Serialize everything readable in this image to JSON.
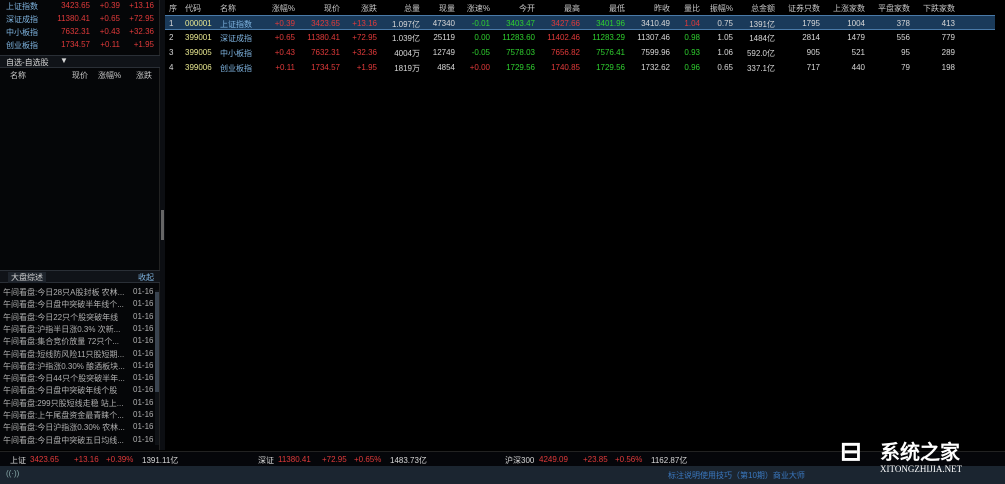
{
  "left": {
    "indices": [
      {
        "name": "上证指数",
        "price": "3423.65",
        "pct": "+0.39",
        "chg": "+13.16"
      },
      {
        "name": "深证成指",
        "price": "11380.41",
        "pct": "+0.65",
        "chg": "+72.95"
      },
      {
        "name": "中小板指",
        "price": "7632.31",
        "pct": "+0.43",
        "chg": "+32.36"
      },
      {
        "name": "创业板指",
        "price": "1734.57",
        "pct": "+0.11",
        "chg": "+1.95"
      }
    ],
    "watchlist": {
      "title": "自选-自选股",
      "headers": [
        "名称",
        "现价",
        "涨幅%",
        "涨跌"
      ]
    },
    "news": {
      "title": "大盘综述",
      "collapse": "收起",
      "items": [
        {
          "t": "午间看盘:今日28只A股封板 农林...",
          "d": "01-16"
        },
        {
          "t": "午间看盘:今日盘中突破半年线个...",
          "d": "01-16"
        },
        {
          "t": "午间看盘:今日22只个股突破年线",
          "d": "01-16"
        },
        {
          "t": "午间看盘:沪指半日涨0.3% 次新...",
          "d": "01-16"
        },
        {
          "t": "午间看盘:集合竞价放量 72只个...",
          "d": "01-16"
        },
        {
          "t": "午间看盘:短线防风险11只股短期...",
          "d": "01-16"
        },
        {
          "t": "午间看盘:沪指涨0.30% 酿酒板块...",
          "d": "01-16"
        },
        {
          "t": "午间看盘:今日44只个股突破半年...",
          "d": "01-16"
        },
        {
          "t": "午间看盘:今日盘中突破年线个股",
          "d": "01-16"
        },
        {
          "t": "午间看盘:299只股短线走稳 站上...",
          "d": "01-16"
        },
        {
          "t": "午间看盘:上午尾盘资金最青睐个...",
          "d": "01-16"
        },
        {
          "t": "午间看盘:今日沪指涨0.30% 农林...",
          "d": "01-16"
        },
        {
          "t": "午间看盘:今日盘中突破五日均线...",
          "d": "01-16"
        }
      ]
    }
  },
  "table": {
    "headers": [
      "序",
      "代码",
      "名称",
      "涨幅%",
      "现价",
      "涨跌",
      "总量",
      "现量",
      "涨速%",
      "今开",
      "最高",
      "最低",
      "昨收",
      "量比",
      "振幅%",
      "总金额",
      "证券只数",
      "上涨家数",
      "平盘家数",
      "下跌家数"
    ],
    "rows": [
      [
        "1",
        "000001",
        "上证指数",
        "+0.39",
        "3423.65",
        "+13.16",
        "1.097亿",
        "47340",
        "-0.01",
        "3403.47",
        "3427.66",
        "3401.96",
        "3410.49",
        "1.04",
        "0.75",
        "1391亿",
        "1795",
        "1004",
        "378",
        "413"
      ],
      [
        "2",
        "399001",
        "深证成指",
        "+0.65",
        "11380.41",
        "+72.95",
        "1.039亿",
        "25119",
        "0.00",
        "11283.60",
        "11402.46",
        "11283.29",
        "11307.46",
        "0.98",
        "1.05",
        "1484亿",
        "2814",
        "1479",
        "556",
        "779"
      ],
      [
        "3",
        "399005",
        "中小板指",
        "+0.43",
        "7632.31",
        "+32.36",
        "4004万",
        "12749",
        "-0.05",
        "7578.03",
        "7656.82",
        "7576.41",
        "7599.96",
        "0.93",
        "1.06",
        "592.0亿",
        "905",
        "521",
        "95",
        "289"
      ],
      [
        "4",
        "399006",
        "创业板指",
        "+0.11",
        "1734.57",
        "+1.95",
        "1819万",
        "4854",
        "+0.00",
        "1729.56",
        "1740.85",
        "1729.56",
        "1732.62",
        "0.96",
        "0.65",
        "337.1亿",
        "717",
        "440",
        "79",
        "198"
      ]
    ],
    "colors": [
      [
        "wht",
        "yel",
        "blue",
        "red",
        "red",
        "red",
        "wht",
        "wht",
        "green",
        "green",
        "red",
        "green",
        "wht",
        "red",
        "wht",
        "wht",
        "wht",
        "wht",
        "wht",
        "wht"
      ],
      [
        "wht",
        "yel",
        "blue",
        "red",
        "red",
        "red",
        "wht",
        "wht",
        "green",
        "green",
        "red",
        "green",
        "wht",
        "green",
        "wht",
        "wht",
        "wht",
        "wht",
        "wht",
        "wht"
      ],
      [
        "wht",
        "yel",
        "blue",
        "red",
        "red",
        "red",
        "wht",
        "wht",
        "green",
        "green",
        "red",
        "green",
        "wht",
        "green",
        "wht",
        "wht",
        "wht",
        "wht",
        "wht",
        "wht"
      ],
      [
        "wht",
        "yel",
        "blue",
        "red",
        "red",
        "red",
        "wht",
        "wht",
        "red",
        "green",
        "red",
        "green",
        "wht",
        "green",
        "wht",
        "wht",
        "wht",
        "wht",
        "wht",
        "wht"
      ]
    ]
  },
  "bottom": {
    "sh": {
      "name": "上证",
      "price": "3423.65",
      "chg": "+13.16",
      "pct": "+0.39%",
      "amt": "1391.11亿"
    },
    "sz": {
      "name": "深证",
      "price": "11380.41",
      "chg": "+72.95",
      "pct": "+0.65%",
      "amt": "1483.73亿"
    },
    "hs": {
      "name": "沪深300",
      "price": "4249.09",
      "chg": "+23.85",
      "pct": "+0.56%",
      "amt": "1162.87亿"
    }
  },
  "status": {
    "tip": "标注说明使用技巧（第10期）商业大师"
  },
  "watermark": {
    "cn": "系统之家",
    "en": "XITONGZHIJIA.NET"
  }
}
